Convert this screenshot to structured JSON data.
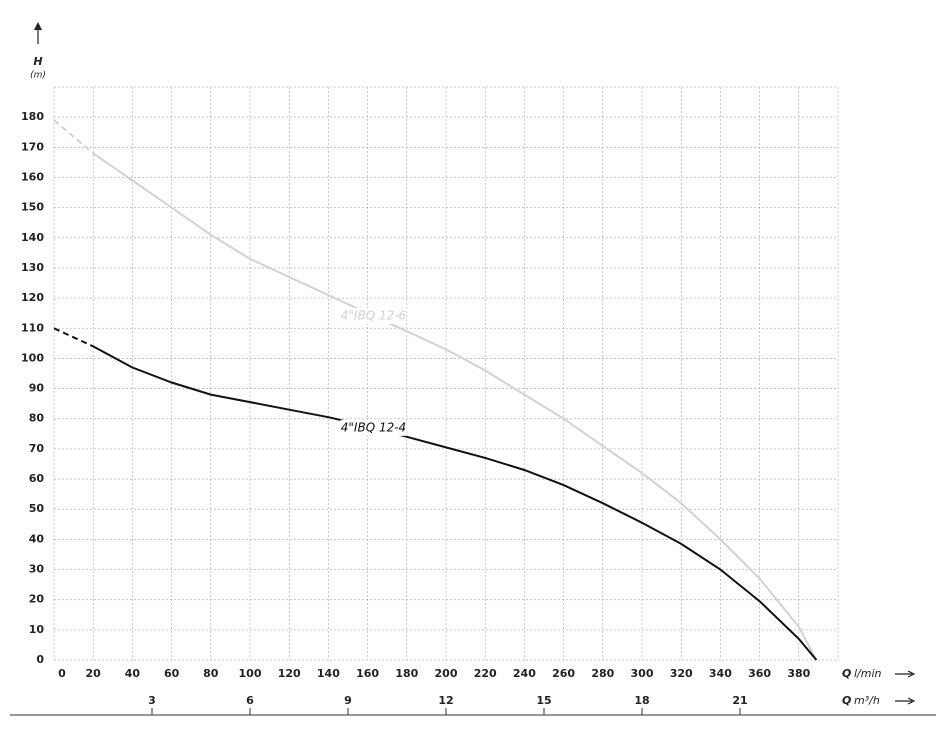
{
  "chart_data": {
    "type": "line",
    "x_label": {
      "symbol": "Q",
      "unit": "l/min"
    },
    "x2_label": {
      "symbol": "Q",
      "unit": "m³/h"
    },
    "y_label": {
      "symbol": "H",
      "unit": "(m)"
    },
    "xlim": [
      0,
      400
    ],
    "xticks": [
      0,
      20,
      40,
      60,
      80,
      100,
      120,
      140,
      160,
      180,
      200,
      220,
      240,
      260,
      280,
      300,
      320,
      340,
      360,
      380
    ],
    "x2lim": [
      0,
      24
    ],
    "x2ticks": [
      3,
      6,
      9,
      12,
      15,
      18,
      21
    ],
    "ylim": [
      0,
      190
    ],
    "yticks": [
      0,
      10,
      20,
      30,
      40,
      50,
      60,
      70,
      80,
      90,
      100,
      110,
      120,
      130,
      140,
      150,
      160,
      170,
      180
    ],
    "grid": true,
    "dash_until": 20,
    "series": [
      {
        "name": "4\"IBQ 12-6",
        "color": "#d2d2d2",
        "x": [
          0,
          20,
          40,
          60,
          80,
          100,
          120,
          140,
          160,
          180,
          200,
          220,
          240,
          260,
          280,
          300,
          320,
          340,
          360,
          380,
          389
        ],
        "values": [
          179,
          168,
          159,
          150,
          141,
          133,
          127,
          121,
          115,
          109,
          103,
          96,
          88,
          80,
          71,
          62,
          52,
          40,
          27,
          11,
          0
        ]
      },
      {
        "name": "4\"IBQ 12-4",
        "color": "#111111",
        "x": [
          0,
          20,
          40,
          60,
          80,
          100,
          120,
          140,
          160,
          180,
          200,
          220,
          240,
          260,
          280,
          300,
          320,
          340,
          360,
          380,
          389
        ],
        "values": [
          110,
          104,
          97,
          92,
          88,
          85.5,
          83,
          80.5,
          77.5,
          74,
          70.5,
          67,
          63,
          58,
          52,
          45.5,
          38.5,
          30,
          19.5,
          7,
          0
        ]
      }
    ]
  }
}
